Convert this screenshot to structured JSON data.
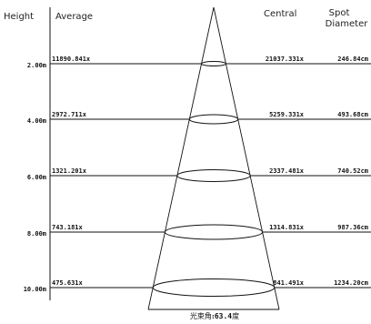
{
  "headers": {
    "height": "Height",
    "average": "Average",
    "central": "Central",
    "spot_line1": "Spot",
    "spot_line2": "Diameter"
  },
  "rows": [
    {
      "height": "2.00m",
      "average": "11890.841x",
      "central": "21037.331x",
      "spot": "246.84cm"
    },
    {
      "height": "4.00m",
      "average": "2972.711x",
      "central": "5259.331x",
      "spot": "493.68cm"
    },
    {
      "height": "6.00m",
      "average": "1321.201x",
      "central": "2337.481x",
      "spot": "740.52cm"
    },
    {
      "height": "8.00m",
      "average": "743.181x",
      "central": "1314.831x",
      "spot": "987.36cm"
    },
    {
      "height": "10.00m",
      "average": "475.631x",
      "central": "841.491x",
      "spot": "1234.20cm"
    }
  ],
  "footer": {
    "label": "光束角",
    "separator": ":",
    "angle": "63.4",
    "unit": "度"
  },
  "colors": {
    "line": "#111111",
    "text": "#111111",
    "background": "#ffffff"
  }
}
